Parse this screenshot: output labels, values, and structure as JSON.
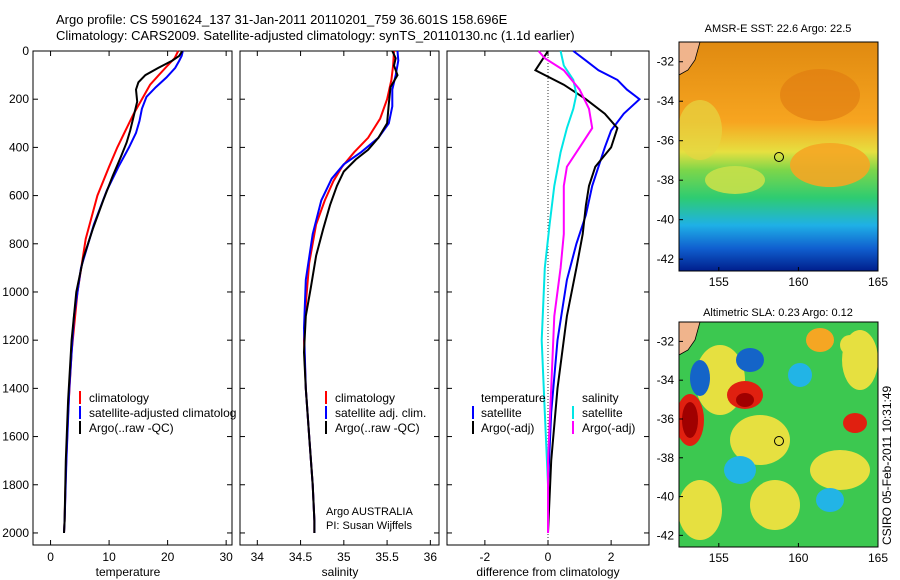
{
  "header": {
    "title_line1": "Argo profile: CS 5901624_137 31-Jan-2011 20110201_759 36.601S 158.696E",
    "title_line2": "Climatology: CARS2009. Satellite-adjusted climatology: synTS_20110130.nc (1.1d earlier)"
  },
  "side_stamp": "CSIRO 05-Feb-2011 10:31:49",
  "chart_data": [
    {
      "type": "line",
      "id": "temperature",
      "xlabel": "temperature",
      "xlim": [
        -3,
        31
      ],
      "xticks": [
        0,
        10,
        20,
        30
      ],
      "ylim": [
        2050,
        0
      ],
      "yticks": [
        0,
        200,
        400,
        600,
        800,
        1000,
        1200,
        1400,
        1600,
        1800,
        2000
      ],
      "legend": [
        "climatology",
        "satellite-adjusted climatolog",
        "Argo(..raw -QC)"
      ],
      "series": [
        {
          "color": "#ff0000",
          "x": [
            21.8,
            21.2,
            20.0,
            18.5,
            17.0,
            15.6,
            14.2,
            12.8,
            11.4,
            10.0,
            8.0,
            6.0,
            4.6,
            3.6,
            3.0,
            2.6,
            2.4,
            2.3
          ],
          "y": [
            0,
            30,
            60,
            100,
            140,
            200,
            260,
            330,
            400,
            480,
            600,
            780,
            1000,
            1250,
            1500,
            1750,
            1950,
            2000
          ]
        },
        {
          "color": "#0000ff",
          "x": [
            22.6,
            22.4,
            22.0,
            21.3,
            19.8,
            18.0,
            16.4,
            15.6,
            15.2,
            14.6,
            13.4,
            11.6,
            9.6,
            7.4,
            5.2,
            4.0,
            3.2,
            2.7,
            2.4,
            2.3
          ],
          "y": [
            0,
            20,
            40,
            70,
            110,
            150,
            190,
            240,
            290,
            340,
            400,
            480,
            580,
            720,
            900,
            1100,
            1400,
            1700,
            1950,
            2000
          ]
        },
        {
          "color": "#000000",
          "x": [
            22.5,
            22.0,
            20.8,
            18.4,
            16.2,
            15.0,
            14.6,
            14.8,
            14.2,
            13.6,
            13.0,
            12.0,
            10.6,
            9.0,
            7.2,
            5.6,
            4.4,
            3.6,
            3.0,
            2.6,
            2.4,
            2.3
          ],
          "y": [
            0,
            20,
            40,
            70,
            100,
            130,
            160,
            210,
            270,
            330,
            380,
            440,
            520,
            620,
            740,
            860,
            1000,
            1200,
            1450,
            1700,
            1950,
            2000
          ]
        }
      ]
    },
    {
      "type": "line",
      "id": "salinity",
      "xlabel": "salinity",
      "xlim": [
        33.8,
        36.1
      ],
      "xticks": [
        34,
        34.5,
        35,
        35.5,
        36
      ],
      "ylim": [
        2050,
        0
      ],
      "legend": [
        "climatology",
        "satellite adj. clim.",
        "Argo(..raw -QC)"
      ],
      "annotation_line1": "Argo AUSTRALIA",
      "annotation_line2": "PI: Susan Wijffels",
      "series": [
        {
          "color": "#ff0000",
          "x": [
            35.58,
            35.57,
            35.55,
            35.5,
            35.42,
            35.28,
            35.12,
            34.98,
            34.88,
            34.78,
            34.68,
            34.6,
            34.56,
            34.54,
            34.56,
            34.6,
            34.64,
            34.66,
            34.66
          ],
          "y": [
            0,
            60,
            120,
            200,
            280,
            360,
            420,
            480,
            540,
            620,
            720,
            880,
            1050,
            1200,
            1400,
            1600,
            1800,
            1950,
            2000
          ]
        },
        {
          "color": "#0000ff",
          "x": [
            35.62,
            35.63,
            35.6,
            35.56,
            35.56,
            35.52,
            35.4,
            35.2,
            35.0,
            34.86,
            34.74,
            34.64,
            34.56,
            34.54,
            34.56,
            34.6,
            34.64,
            34.66,
            34.66
          ],
          "y": [
            0,
            40,
            100,
            160,
            230,
            300,
            360,
            420,
            470,
            530,
            620,
            760,
            950,
            1150,
            1400,
            1600,
            1800,
            1950,
            2000
          ]
        },
        {
          "color": "#000000",
          "x": [
            35.56,
            35.6,
            35.58,
            35.62,
            35.54,
            35.52,
            35.5,
            35.4,
            35.28,
            35.14,
            35.0,
            34.92,
            34.84,
            34.76,
            34.68,
            34.62,
            34.56,
            34.54,
            34.56,
            34.6,
            34.64,
            34.66,
            34.66
          ],
          "y": [
            0,
            30,
            60,
            100,
            150,
            220,
            300,
            360,
            410,
            450,
            500,
            560,
            640,
            740,
            850,
            980,
            1100,
            1250,
            1400,
            1600,
            1800,
            1950,
            2000
          ]
        }
      ]
    },
    {
      "type": "line",
      "id": "difference",
      "xlabel": "difference from climatology",
      "xlim": [
        -3.2,
        3.2
      ],
      "xticks": [
        -2,
        0,
        2
      ],
      "ylim": [
        2050,
        0
      ],
      "legend_col1_header": "temperature",
      "legend_col1": [
        "satellite",
        "Argo(-adj)"
      ],
      "legend_col2_header": "salinity",
      "legend_col2": [
        "satellite",
        "Argo(-adj)"
      ],
      "series": [
        {
          "color": "#0000ff",
          "x": [
            0.8,
            1.2,
            1.6,
            2.2,
            2.5,
            2.9,
            2.4,
            2.0,
            1.8,
            1.6,
            1.4,
            1.2,
            0.9,
            0.6,
            0.3,
            0.1,
            0.0,
            0.0
          ],
          "y": [
            0,
            40,
            80,
            120,
            160,
            200,
            260,
            330,
            400,
            480,
            560,
            680,
            800,
            950,
            1200,
            1500,
            1800,
            2000
          ]
        },
        {
          "color": "#000000",
          "x": [
            0.0,
            -0.4,
            0.5,
            1.2,
            1.8,
            2.2,
            2.0,
            1.5,
            1.3,
            1.2,
            1.1,
            0.9,
            0.6,
            0.3,
            0.1,
            0.0
          ],
          "y": [
            0,
            80,
            140,
            200,
            260,
            320,
            400,
            480,
            560,
            640,
            760,
            900,
            1100,
            1400,
            1700,
            2000
          ]
        },
        {
          "color": "#00e6e6",
          "x": [
            0.4,
            0.5,
            0.8,
            0.9,
            0.8,
            0.6,
            0.4,
            0.2,
            0.05,
            -0.1,
            -0.2,
            -0.1,
            0.0,
            0.0
          ],
          "y": [
            0,
            60,
            120,
            180,
            240,
            320,
            420,
            560,
            720,
            900,
            1200,
            1500,
            1800,
            2000
          ]
        },
        {
          "color": "#ff00ff",
          "x": [
            -0.3,
            -0.1,
            0.5,
            1.0,
            1.3,
            1.4,
            1.0,
            0.6,
            0.5,
            0.5,
            0.5,
            0.4,
            0.2,
            0.1,
            0.0,
            0.0
          ],
          "y": [
            0,
            30,
            80,
            160,
            240,
            320,
            400,
            480,
            560,
            640,
            760,
            900,
            1100,
            1400,
            1700,
            2000
          ]
        }
      ]
    }
  ],
  "maps": [
    {
      "title": "AMSR-E SST: 22.6 Argo: 22.5",
      "xticks": [
        155,
        160,
        165
      ],
      "yticks": [
        -32,
        -34,
        -36,
        -38,
        -40,
        -42
      ]
    },
    {
      "title": "Altimetric SLA: 0.23 Argo: 0.12",
      "xticks": [
        155,
        160,
        165
      ],
      "yticks": [
        -32,
        -34,
        -36,
        -38,
        -40,
        -42
      ]
    }
  ]
}
